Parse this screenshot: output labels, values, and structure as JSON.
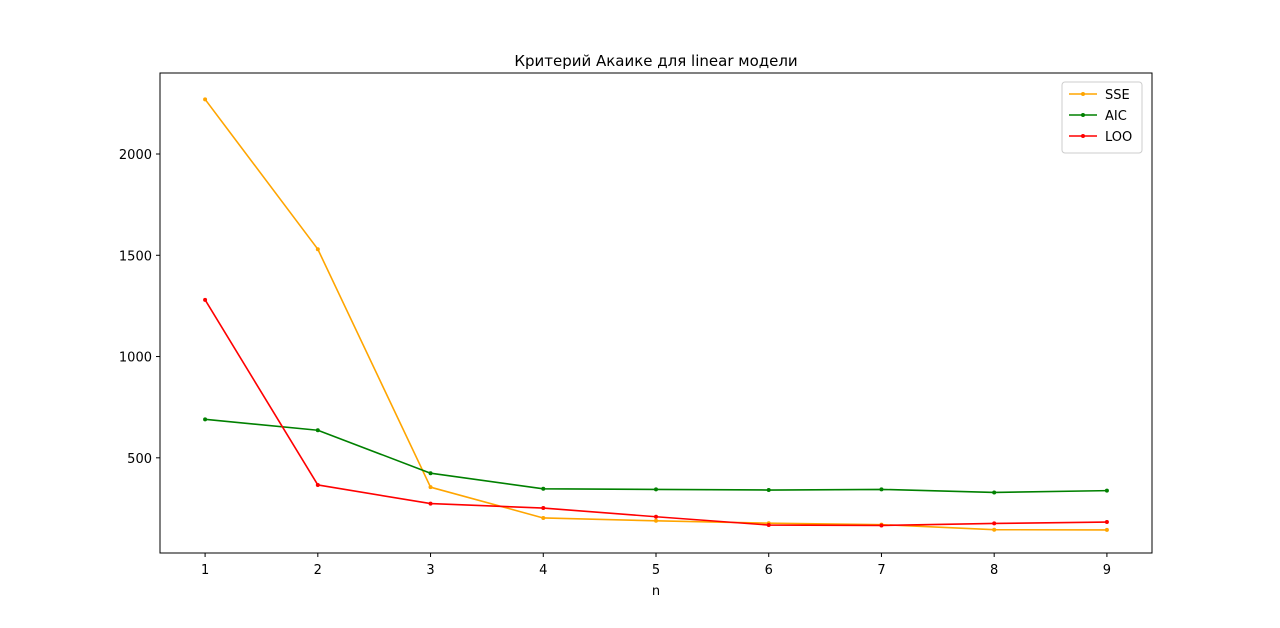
{
  "chart_data": {
    "type": "line",
    "title": "Критерий Акаике для linear модели",
    "xlabel": "n",
    "ylabel": "",
    "x": [
      1,
      2,
      3,
      4,
      5,
      6,
      7,
      8,
      9
    ],
    "xticks": [
      "1",
      "2",
      "3",
      "4",
      "5",
      "6",
      "7",
      "8",
      "9"
    ],
    "yticks": [
      500,
      1000,
      1500,
      2000
    ],
    "ytick_labels": [
      "500",
      "1000",
      "1500",
      "2000"
    ],
    "xlim": [
      0.6,
      9.4
    ],
    "ylim": [
      30,
      2400
    ],
    "grid": false,
    "legend_position": "top-right",
    "series": [
      {
        "name": "SSE",
        "color": "#ffa500",
        "values": [
          2270,
          1530,
          355,
          203,
          189,
          177,
          170,
          145,
          144
        ]
      },
      {
        "name": "AIC",
        "color": "#008000",
        "values": [
          690,
          636,
          424,
          347,
          344,
          341,
          344,
          329,
          338
        ]
      },
      {
        "name": "LOO",
        "color": "#ff0000",
        "values": [
          1280,
          366,
          274,
          252,
          209,
          168,
          166,
          176,
          183
        ]
      }
    ]
  }
}
